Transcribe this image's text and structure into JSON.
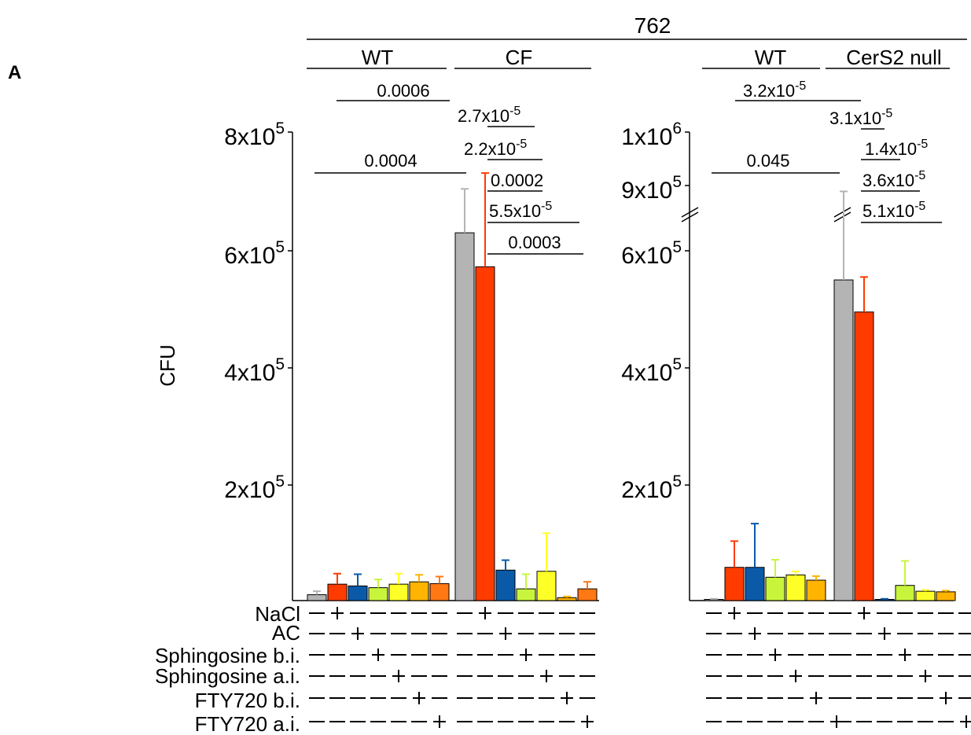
{
  "panel_label": "A",
  "strain": "762",
  "y_label": "CFU",
  "groups": {
    "wt_left": "WT",
    "cf": "CF",
    "wt_right": "WT",
    "cers2": "CerS2 null"
  },
  "treatments": [
    "NaCl",
    "AC",
    "Sphingosine b.i.",
    "Sphingosine a.i.",
    "FTY720 b.i.",
    "FTY720 a.i."
  ],
  "treatment_signs": [
    [
      "-",
      "+",
      "-",
      "-",
      "-",
      "-",
      "-"
    ],
    [
      "-",
      "-",
      "+",
      "-",
      "-",
      "-",
      "-"
    ],
    [
      "-",
      "-",
      "-",
      "+",
      "-",
      "-",
      "-"
    ],
    [
      "-",
      "-",
      "-",
      "-",
      "+",
      "-",
      "-"
    ],
    [
      "-",
      "-",
      "-",
      "-",
      "-",
      "+",
      "-"
    ],
    [
      "-",
      "-",
      "-",
      "-",
      "-",
      "-",
      "+"
    ]
  ],
  "colors": {
    "none": "#b4b4b4",
    "NaCl": "#ff3b00",
    "AC": "#0a5aa8",
    "Sphingosine b.i.": "#c8f53c",
    "Sphingosine a.i.": "#ffff28",
    "FTY720 b.i.": "#ffb400",
    "FTY720 a.i.": "#ff7814"
  },
  "chart_data": [
    {
      "type": "bar",
      "title": "762",
      "ylabel": "CFU",
      "ylim": [
        0,
        800000
      ],
      "yticks": [
        "8x10^5",
        "6x10^5",
        "4x10^5",
        "2x10^5"
      ],
      "categories": [
        "none",
        "NaCl",
        "AC",
        "Sphingosine b.i.",
        "Sphingosine a.i.",
        "FTY720 b.i.",
        "FTY720 a.i."
      ],
      "series": [
        {
          "name": "WT",
          "values": [
            10000,
            28000,
            25000,
            22000,
            28000,
            32000,
            29000
          ],
          "errors": [
            6000,
            18000,
            20000,
            14000,
            18000,
            12000,
            12000
          ]
        },
        {
          "name": "CF",
          "values": [
            628000,
            570000,
            52000,
            20000,
            50000,
            5000,
            20000
          ],
          "errors": [
            75000,
            160000,
            17000,
            25000,
            65000,
            2000,
            12000
          ]
        }
      ],
      "significance": [
        {
          "label": "0.0006"
        },
        {
          "label": "0.0004"
        },
        {
          "label": "2.7x10-5"
        },
        {
          "label": "2.2x10-5"
        },
        {
          "label": "0.0002"
        },
        {
          "label": "5.5x10-5"
        },
        {
          "label": "0.0003"
        }
      ]
    },
    {
      "type": "bar",
      "ylabel": "CFU",
      "ylim": [
        0,
        1000000
      ],
      "axis_break": [
        600000,
        900000
      ],
      "yticks": [
        "1x10^6",
        "9x10^5",
        "6x10^5",
        "4x10^5",
        "2x10^5"
      ],
      "categories": [
        "none",
        "NaCl",
        "AC",
        "Sphingosine b.i.",
        "Sphingosine a.i.",
        "FTY720 b.i.",
        "FTY720 a.i."
      ],
      "series": [
        {
          "name": "WT",
          "values": [
            2000,
            57000,
            57000,
            40000,
            44000,
            35000,
            null
          ],
          "errors": [
            1000,
            45000,
            75000,
            30000,
            6000,
            7000,
            null
          ]
        },
        {
          "name": "CerS2 null",
          "values": [
            550000,
            495000,
            2000,
            26000,
            16000,
            15000,
            null
          ],
          "errors": [
            250000,
            60000,
            1000,
            42000,
            2000,
            2000,
            null
          ]
        }
      ],
      "significance": [
        {
          "label": "3.2x10-5"
        },
        {
          "label": "0.045"
        },
        {
          "label": "3.1x10-5"
        },
        {
          "label": "1.4x10-5"
        },
        {
          "label": "3.6x10-5"
        },
        {
          "label": "5.1x10-5"
        }
      ]
    }
  ]
}
